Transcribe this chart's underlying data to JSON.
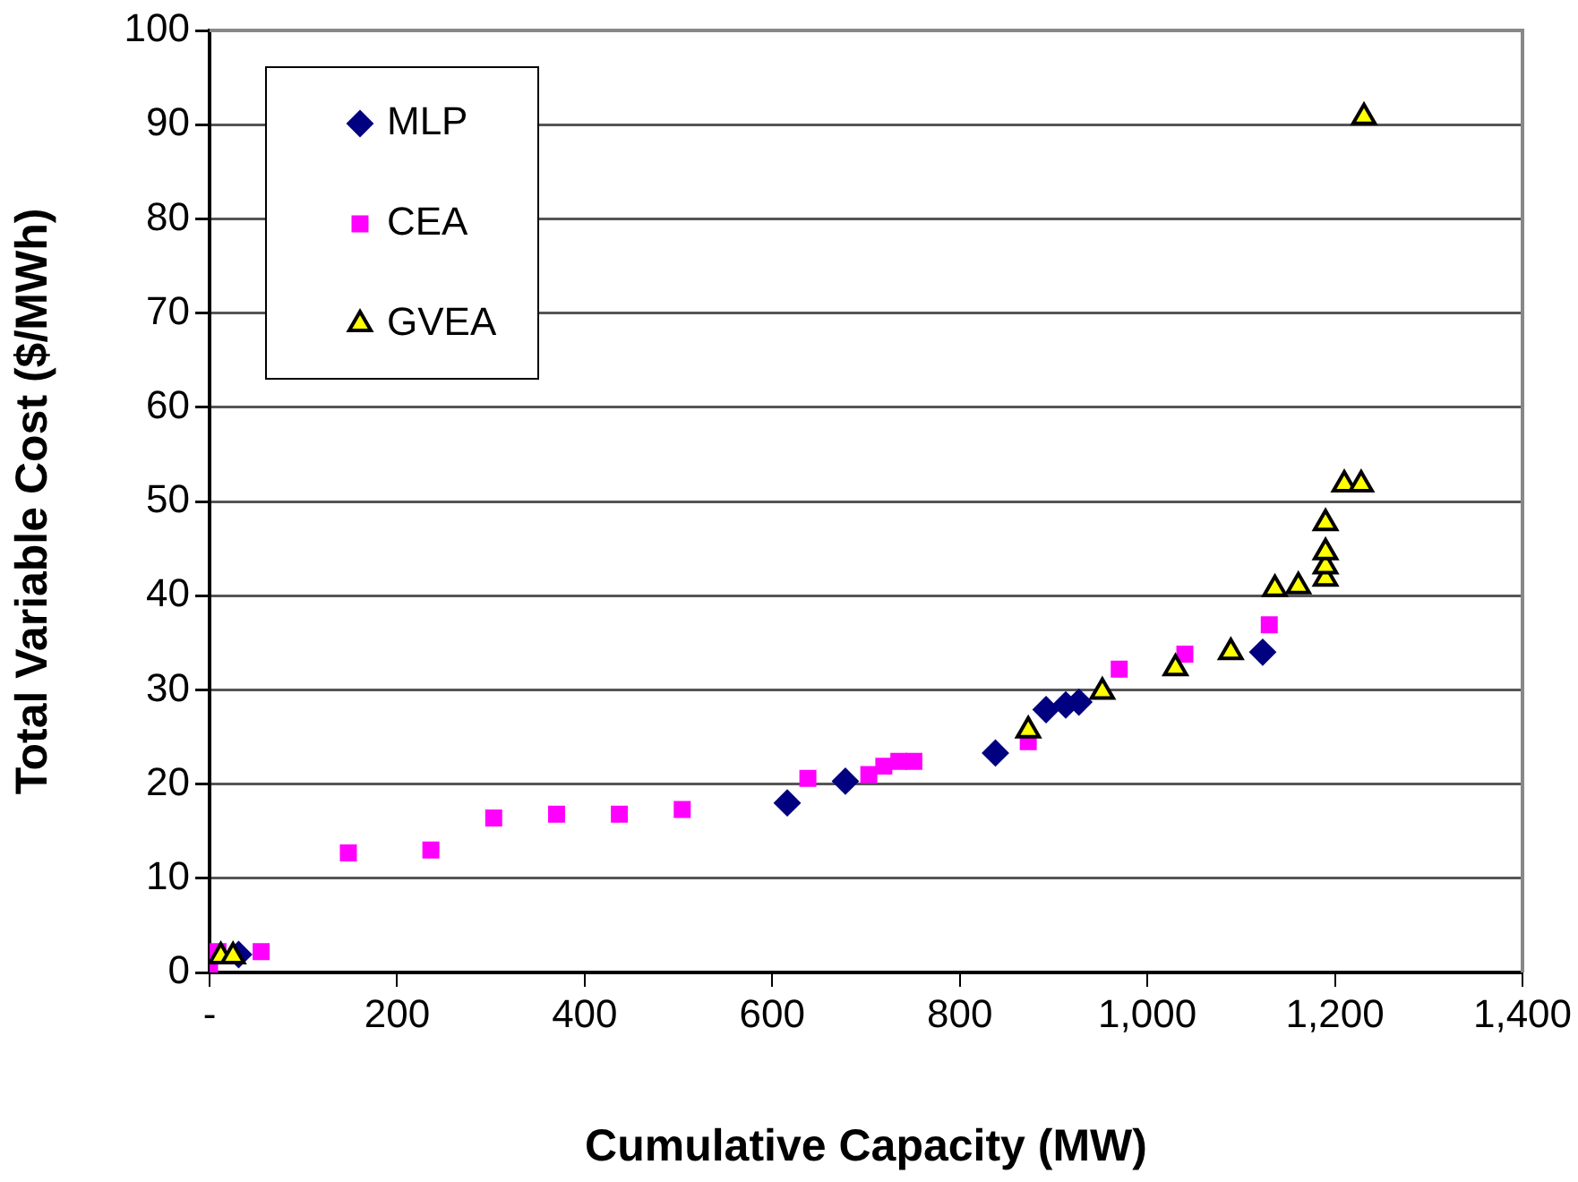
{
  "chart_data": {
    "type": "scatter",
    "xlabel": "Cumulative Capacity (MW)",
    "ylabel": "Total Variable Cost ($/MWh)",
    "xlim": [
      0,
      1400
    ],
    "xticks": [
      {
        "value": 0,
        "label": "-"
      },
      {
        "value": 200,
        "label": "200"
      },
      {
        "value": 400,
        "label": "400"
      },
      {
        "value": 600,
        "label": "600"
      },
      {
        "value": 800,
        "label": "800"
      },
      {
        "value": 1000,
        "label": "1,000"
      },
      {
        "value": 1200,
        "label": "1,200"
      },
      {
        "value": 1400,
        "label": "1,400"
      }
    ],
    "ylim": [
      0,
      100
    ],
    "yticks": [
      0,
      10,
      20,
      30,
      40,
      50,
      60,
      70,
      80,
      90,
      100
    ],
    "grid": "y",
    "legend": "top left",
    "series": [
      {
        "name": "MLP",
        "color": "#000080",
        "marker": "diamond",
        "x": [
          31,
          616,
          678,
          838,
          892,
          913,
          927,
          1123
        ],
        "values": [
          1.9,
          18,
          20.3,
          23.3,
          27.9,
          28.4,
          28.7,
          34
        ]
      },
      {
        "name": "CEA",
        "color": "#ff00ff",
        "marker": "square",
        "x": [
          0,
          9,
          55,
          148,
          236,
          303,
          370,
          437,
          504,
          638,
          703,
          719,
          735,
          751,
          873,
          970,
          1040,
          1130
        ],
        "values": [
          0.2,
          2.2,
          2.2,
          12.7,
          13,
          16.4,
          16.8,
          16.8,
          17.3,
          20.6,
          21,
          21.9,
          22.4,
          22.4,
          24.5,
          32.2,
          33.8,
          36.9
        ]
      },
      {
        "name": "GVEA",
        "color": "#ffff00",
        "marker": "triangle",
        "x": [
          12,
          25,
          873,
          952,
          1030,
          1089,
          1136,
          1161,
          1190,
          1190,
          1190,
          1190,
          1210,
          1228,
          1231
        ],
        "values": [
          1.7,
          1.7,
          25.7,
          29.8,
          32.3,
          34,
          40.7,
          41,
          41.8,
          43.1,
          44.6,
          47.7,
          51.8,
          51.8,
          90.8
        ]
      }
    ]
  }
}
